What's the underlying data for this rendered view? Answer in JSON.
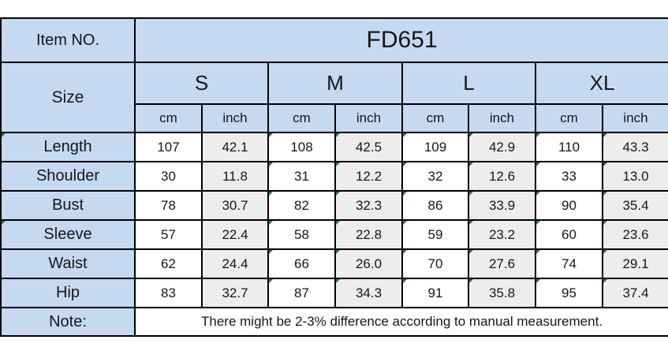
{
  "table": {
    "item_label": "Item NO.",
    "item_value": "FD651",
    "size_label": "Size",
    "sizes": [
      "S",
      "M",
      "L",
      "XL"
    ],
    "unit_row": [
      "cm",
      "inch",
      "cm",
      "inch",
      "cm",
      "inch",
      "cm",
      "inch"
    ],
    "rows": [
      {
        "label": "Length",
        "values": [
          "107",
          "42.1",
          "108",
          "42.5",
          "109",
          "42.9",
          "110",
          "43.3"
        ]
      },
      {
        "label": "Shoulder",
        "values": [
          "30",
          "11.8",
          "31",
          "12.2",
          "32",
          "12.6",
          "33",
          "13.0"
        ]
      },
      {
        "label": "Bust",
        "values": [
          "78",
          "30.7",
          "82",
          "32.3",
          "86",
          "33.9",
          "90",
          "35.4"
        ]
      },
      {
        "label": "Sleeve",
        "values": [
          "57",
          "22.4",
          "58",
          "22.8",
          "59",
          "23.2",
          "60",
          "23.6"
        ]
      },
      {
        "label": "Waist",
        "values": [
          "62",
          "24.4",
          "66",
          "26.0",
          "70",
          "27.6",
          "74",
          "29.1"
        ]
      },
      {
        "label": "Hip",
        "values": [
          "83",
          "32.7",
          "87",
          "34.3",
          "91",
          "35.8",
          "95",
          "37.4"
        ]
      }
    ],
    "note_label": "Note:",
    "note_text": "There might be 2-3% difference according to manual measurement.",
    "error_indicator_value_cols_from": 2,
    "error_indicator_label_rows": [
      0,
      3
    ]
  },
  "colors": {
    "header_fill": "#C5D9F1",
    "inch_column_fill": "#EDEDED",
    "cm_column_fill": "#FFFFFF",
    "border": "#000000",
    "error_indicator_green": "#1F7A2E",
    "text": "#161616"
  }
}
